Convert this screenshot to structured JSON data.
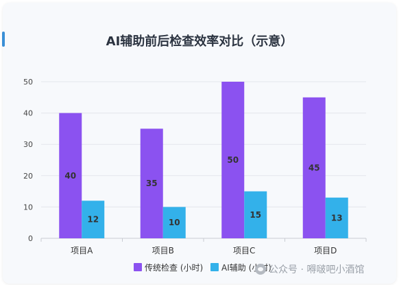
{
  "chart_data": {
    "type": "bar",
    "title": "AI辅助前后检查效率对比（示意）",
    "categories": [
      "项目A",
      "项目B",
      "项目C",
      "项目D"
    ],
    "series": [
      {
        "name": "传统检查 (小时)",
        "values": [
          40,
          35,
          50,
          45
        ],
        "color": "#8b52f0"
      },
      {
        "name": "AI辅助 (小时)",
        "values": [
          12,
          10,
          15,
          13
        ],
        "color": "#33b1ea"
      }
    ],
    "ylim": [
      0,
      50
    ],
    "yticks": [
      0,
      10,
      20,
      30,
      40,
      50
    ],
    "grid": true,
    "legend": "bottom"
  },
  "watermark": {
    "text": "公众号 · 嘚啵吧小酒馆",
    "icon": "wechat-icon"
  },
  "colors": {
    "accent": "#3a8fd6",
    "background": "#f7f9fc"
  }
}
